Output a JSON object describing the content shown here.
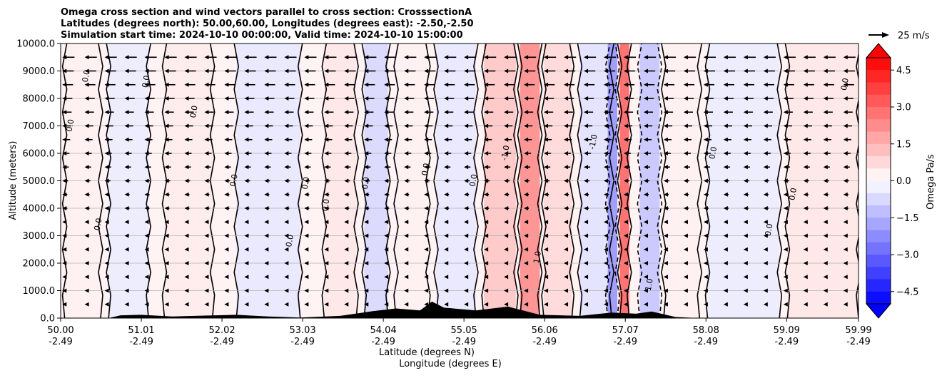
{
  "chart_data": {
    "type": "heatmap",
    "title_lines": [
      "Omega cross section and wind vectors parallel to cross section: CrosssectionA",
      "Latitudes (degrees north): 50.00,60.00, Longitudes (degrees east): -2.50,-2.50",
      "Simulation start time: 2024-10-10 00:00:00, Valid time: 2024-10-10 15:00:00"
    ],
    "ylabel": "Altitude (meters)",
    "xlabel_lines": [
      "Latitude (degrees N)",
      "Longitude (degrees E)"
    ],
    "ylim": [
      0,
      10000
    ],
    "xlim": [
      50.0,
      59.99
    ],
    "y_ticks": [
      0,
      1000,
      2000,
      3000,
      4000,
      5000,
      6000,
      7000,
      8000,
      9000,
      10000
    ],
    "y_tick_labels": [
      "0.0",
      "1000.0",
      "2000.0",
      "3000.0",
      "4000.0",
      "5000.0",
      "6000.0",
      "7000.0",
      "8000.0",
      "9000.0",
      "10000.0"
    ],
    "x_ticks": [
      50.0,
      51.01,
      52.02,
      53.03,
      54.04,
      55.05,
      56.06,
      57.07,
      58.08,
      59.09,
      59.99
    ],
    "x_tick_lat_labels": [
      "50.00",
      "51.01",
      "52.02",
      "53.03",
      "54.04",
      "55.05",
      "56.06",
      "57.07",
      "58.08",
      "59.09",
      "59.99"
    ],
    "x_tick_lon_labels": [
      "-2.49",
      "-2.49",
      "-2.49",
      "-2.49",
      "-2.49",
      "-2.49",
      "-2.49",
      "-2.49",
      "-2.49",
      "-2.49",
      "-2.49"
    ],
    "grid": "horizontal",
    "colorbar": {
      "label": "Omega Pa/s",
      "range": [
        -5.0,
        5.0
      ],
      "levels": 20,
      "extend": "both",
      "ticks": [
        4.5,
        3.0,
        1.5,
        0.0,
        -1.5,
        -3.0,
        -4.5
      ],
      "tick_labels": [
        "4.5",
        "3.0",
        "1.5",
        "0.0",
        "−1.5",
        "−3.0",
        "−4.5"
      ],
      "colormap": "bwr"
    },
    "quiver_key": {
      "label": "25 m/s",
      "value": 25
    },
    "contour_labels": [
      "0.0",
      "0.0",
      "0.0",
      "0.0",
      "0.0",
      "0.0",
      "0.0",
      "0.0",
      "0.0",
      "0.0",
      "-1.0",
      "1.0",
      "-1.0",
      "1.0",
      "0.0",
      "0.0",
      "0.0",
      "0.0",
      "0.0",
      "0.0"
    ],
    "omega_bands": [
      {
        "x": 50.05,
        "w": 0.45,
        "value": 0.3
      },
      {
        "x": 50.6,
        "w": 0.5,
        "value": -0.4
      },
      {
        "x": 51.3,
        "w": 0.6,
        "value": 0.4
      },
      {
        "x": 52.2,
        "w": 0.8,
        "value": -0.5
      },
      {
        "x": 53.3,
        "w": 0.4,
        "value": 0.5
      },
      {
        "x": 53.8,
        "w": 0.3,
        "value": -0.8
      },
      {
        "x": 54.2,
        "w": 0.4,
        "value": 0.3
      },
      {
        "x": 54.7,
        "w": 0.5,
        "value": -0.5
      },
      {
        "x": 55.3,
        "w": 0.4,
        "value": 1.2
      },
      {
        "x": 55.75,
        "w": 0.25,
        "value": 2.4
      },
      {
        "x": 56.05,
        "w": 0.35,
        "value": 0.8
      },
      {
        "x": 56.5,
        "w": 0.4,
        "value": -0.6
      },
      {
        "x": 56.85,
        "w": 0.12,
        "value": -2.2
      },
      {
        "x": 57.0,
        "w": 0.12,
        "value": 3.2
      },
      {
        "x": 57.25,
        "w": 0.25,
        "value": -1.2
      },
      {
        "x": 57.55,
        "w": 0.45,
        "value": 0.3
      },
      {
        "x": 58.1,
        "w": 0.9,
        "value": -0.4
      },
      {
        "x": 59.1,
        "w": 0.89,
        "value": 0.5
      }
    ],
    "wind_columns": [
      50.02,
      50.3,
      50.55,
      50.8,
      51.05,
      51.3,
      51.55,
      51.8,
      52.05,
      52.3,
      52.55,
      52.8,
      53.05,
      53.3,
      53.55,
      53.8,
      54.05,
      54.3,
      54.55,
      54.8,
      55.05,
      55.3,
      55.55,
      55.8,
      56.05,
      56.3,
      56.55,
      56.8,
      57.05,
      57.3,
      57.55,
      57.8,
      58.05,
      58.3,
      58.55,
      58.8,
      59.05,
      59.3,
      59.55,
      59.8
    ],
    "wind_levels": [
      500,
      1000,
      1500,
      2000,
      2500,
      3000,
      3500,
      4000,
      4500,
      5000,
      5500,
      6000,
      6500,
      7000,
      7500,
      8000,
      8500,
      9000,
      9500
    ],
    "wind_speed_profile": [
      2,
      3,
      4,
      5,
      5,
      6,
      6,
      7,
      7,
      8,
      9,
      10,
      11,
      12,
      13,
      14,
      15,
      16,
      17
    ],
    "terrain": [
      {
        "lat": 50.0,
        "h": 0
      },
      {
        "lat": 50.6,
        "h": 0
      },
      {
        "lat": 50.75,
        "h": 100
      },
      {
        "lat": 51.0,
        "h": 120
      },
      {
        "lat": 51.4,
        "h": 60
      },
      {
        "lat": 51.8,
        "h": 90
      },
      {
        "lat": 52.2,
        "h": 120
      },
      {
        "lat": 52.6,
        "h": 60
      },
      {
        "lat": 53.0,
        "h": 20
      },
      {
        "lat": 53.5,
        "h": 80
      },
      {
        "lat": 53.9,
        "h": 250
      },
      {
        "lat": 54.2,
        "h": 350
      },
      {
        "lat": 54.5,
        "h": 280
      },
      {
        "lat": 54.65,
        "h": 600
      },
      {
        "lat": 54.8,
        "h": 380
      },
      {
        "lat": 55.2,
        "h": 280
      },
      {
        "lat": 55.6,
        "h": 420
      },
      {
        "lat": 56.0,
        "h": 120
      },
      {
        "lat": 56.5,
        "h": 80
      },
      {
        "lat": 56.9,
        "h": 200
      },
      {
        "lat": 57.2,
        "h": 160
      },
      {
        "lat": 57.4,
        "h": 240
      },
      {
        "lat": 57.7,
        "h": 40
      },
      {
        "lat": 58.0,
        "h": 0
      },
      {
        "lat": 59.99,
        "h": 0
      }
    ]
  }
}
